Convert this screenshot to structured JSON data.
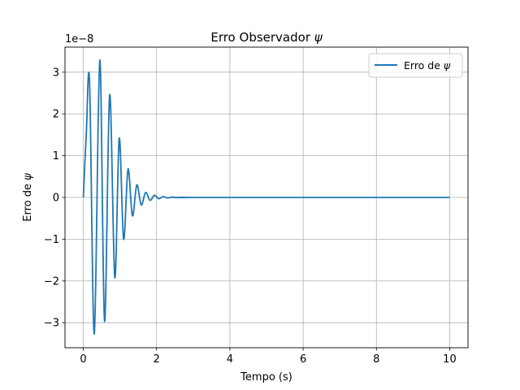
{
  "chart_data": {
    "type": "line",
    "title": {
      "prefix": "Erro Observador ",
      "symbol": "ψ"
    },
    "xlabel": "Tempo (s)",
    "ylabel": {
      "prefix": "Erro de ",
      "symbol": "ψ"
    },
    "offset_text": "1e−8",
    "xlim": [
      -0.5,
      10.5
    ],
    "ylim": [
      -3.6,
      3.6
    ],
    "y_scale_exponent": -8,
    "xticks": [
      0,
      2,
      4,
      6,
      8,
      10
    ],
    "xtick_labels": [
      "0",
      "2",
      "4",
      "6",
      "8",
      "10"
    ],
    "yticks": [
      3,
      2,
      1,
      0,
      -1,
      -2,
      -3
    ],
    "ytick_labels": [
      "3",
      "2",
      "1",
      "0",
      "−1",
      "−2",
      "−3"
    ],
    "grid": true,
    "legend_position": "top-right",
    "series": [
      {
        "name": {
          "prefix": "Erro de ",
          "symbol": "ψ"
        },
        "color": "#1f77b4",
        "x": [
          0,
          0.08,
          0.17,
          0.3,
          0.45,
          0.58,
          0.72,
          0.86,
          0.98,
          1.1,
          1.22,
          1.34,
          1.46,
          1.58,
          1.7,
          1.82,
          1.94,
          2.06,
          2.18,
          2.3,
          2.42,
          2.55,
          2.7,
          2.85,
          3.0,
          10.0
        ],
        "y": [
          0,
          1.5,
          2.78,
          -3.27,
          3.29,
          -2.97,
          2.46,
          -1.92,
          1.42,
          -1.0,
          0.68,
          -0.44,
          0.3,
          -0.18,
          0.12,
          -0.07,
          0.05,
          -0.03,
          0.02,
          -0.012,
          0.008,
          -0.004,
          0.002,
          -0.001,
          0,
          0
        ]
      }
    ]
  }
}
